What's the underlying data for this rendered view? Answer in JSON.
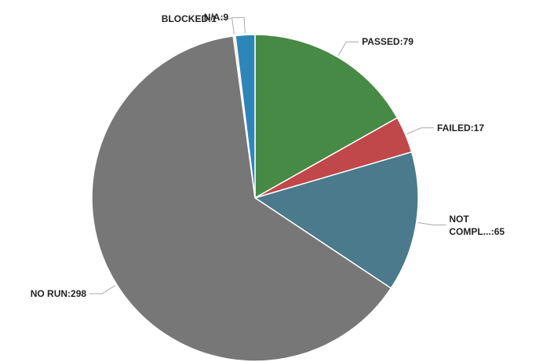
{
  "chart_data": {
    "type": "pie",
    "categories": [
      "PASSED:",
      "FAILED:",
      "NOT COMPL...:",
      "NO RUN:",
      "BLOCKED:",
      "N/A:"
    ],
    "values": [
      79,
      17,
      65,
      298,
      1,
      9
    ],
    "colors": [
      "#468a45",
      "#c0474a",
      "#4a7a8c",
      "#777777",
      "#e8e4c8",
      "#2e86b8"
    ]
  }
}
